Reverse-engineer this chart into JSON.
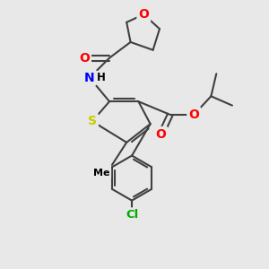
{
  "bg_color": "#e8e8e8",
  "atom_colors": {
    "S": "#cccc00",
    "O": "#ff0000",
    "N": "#0000ff",
    "Cl": "#00aa00",
    "C": "#000000",
    "H": "#000000"
  },
  "bond_color": "#404040",
  "bond_width": 1.5,
  "font_size_atom": 9.5,
  "figsize": [
    3.0,
    3.0
  ],
  "dpi": 100,
  "xlim": [
    0,
    10
  ],
  "ylim": [
    0,
    10
  ]
}
